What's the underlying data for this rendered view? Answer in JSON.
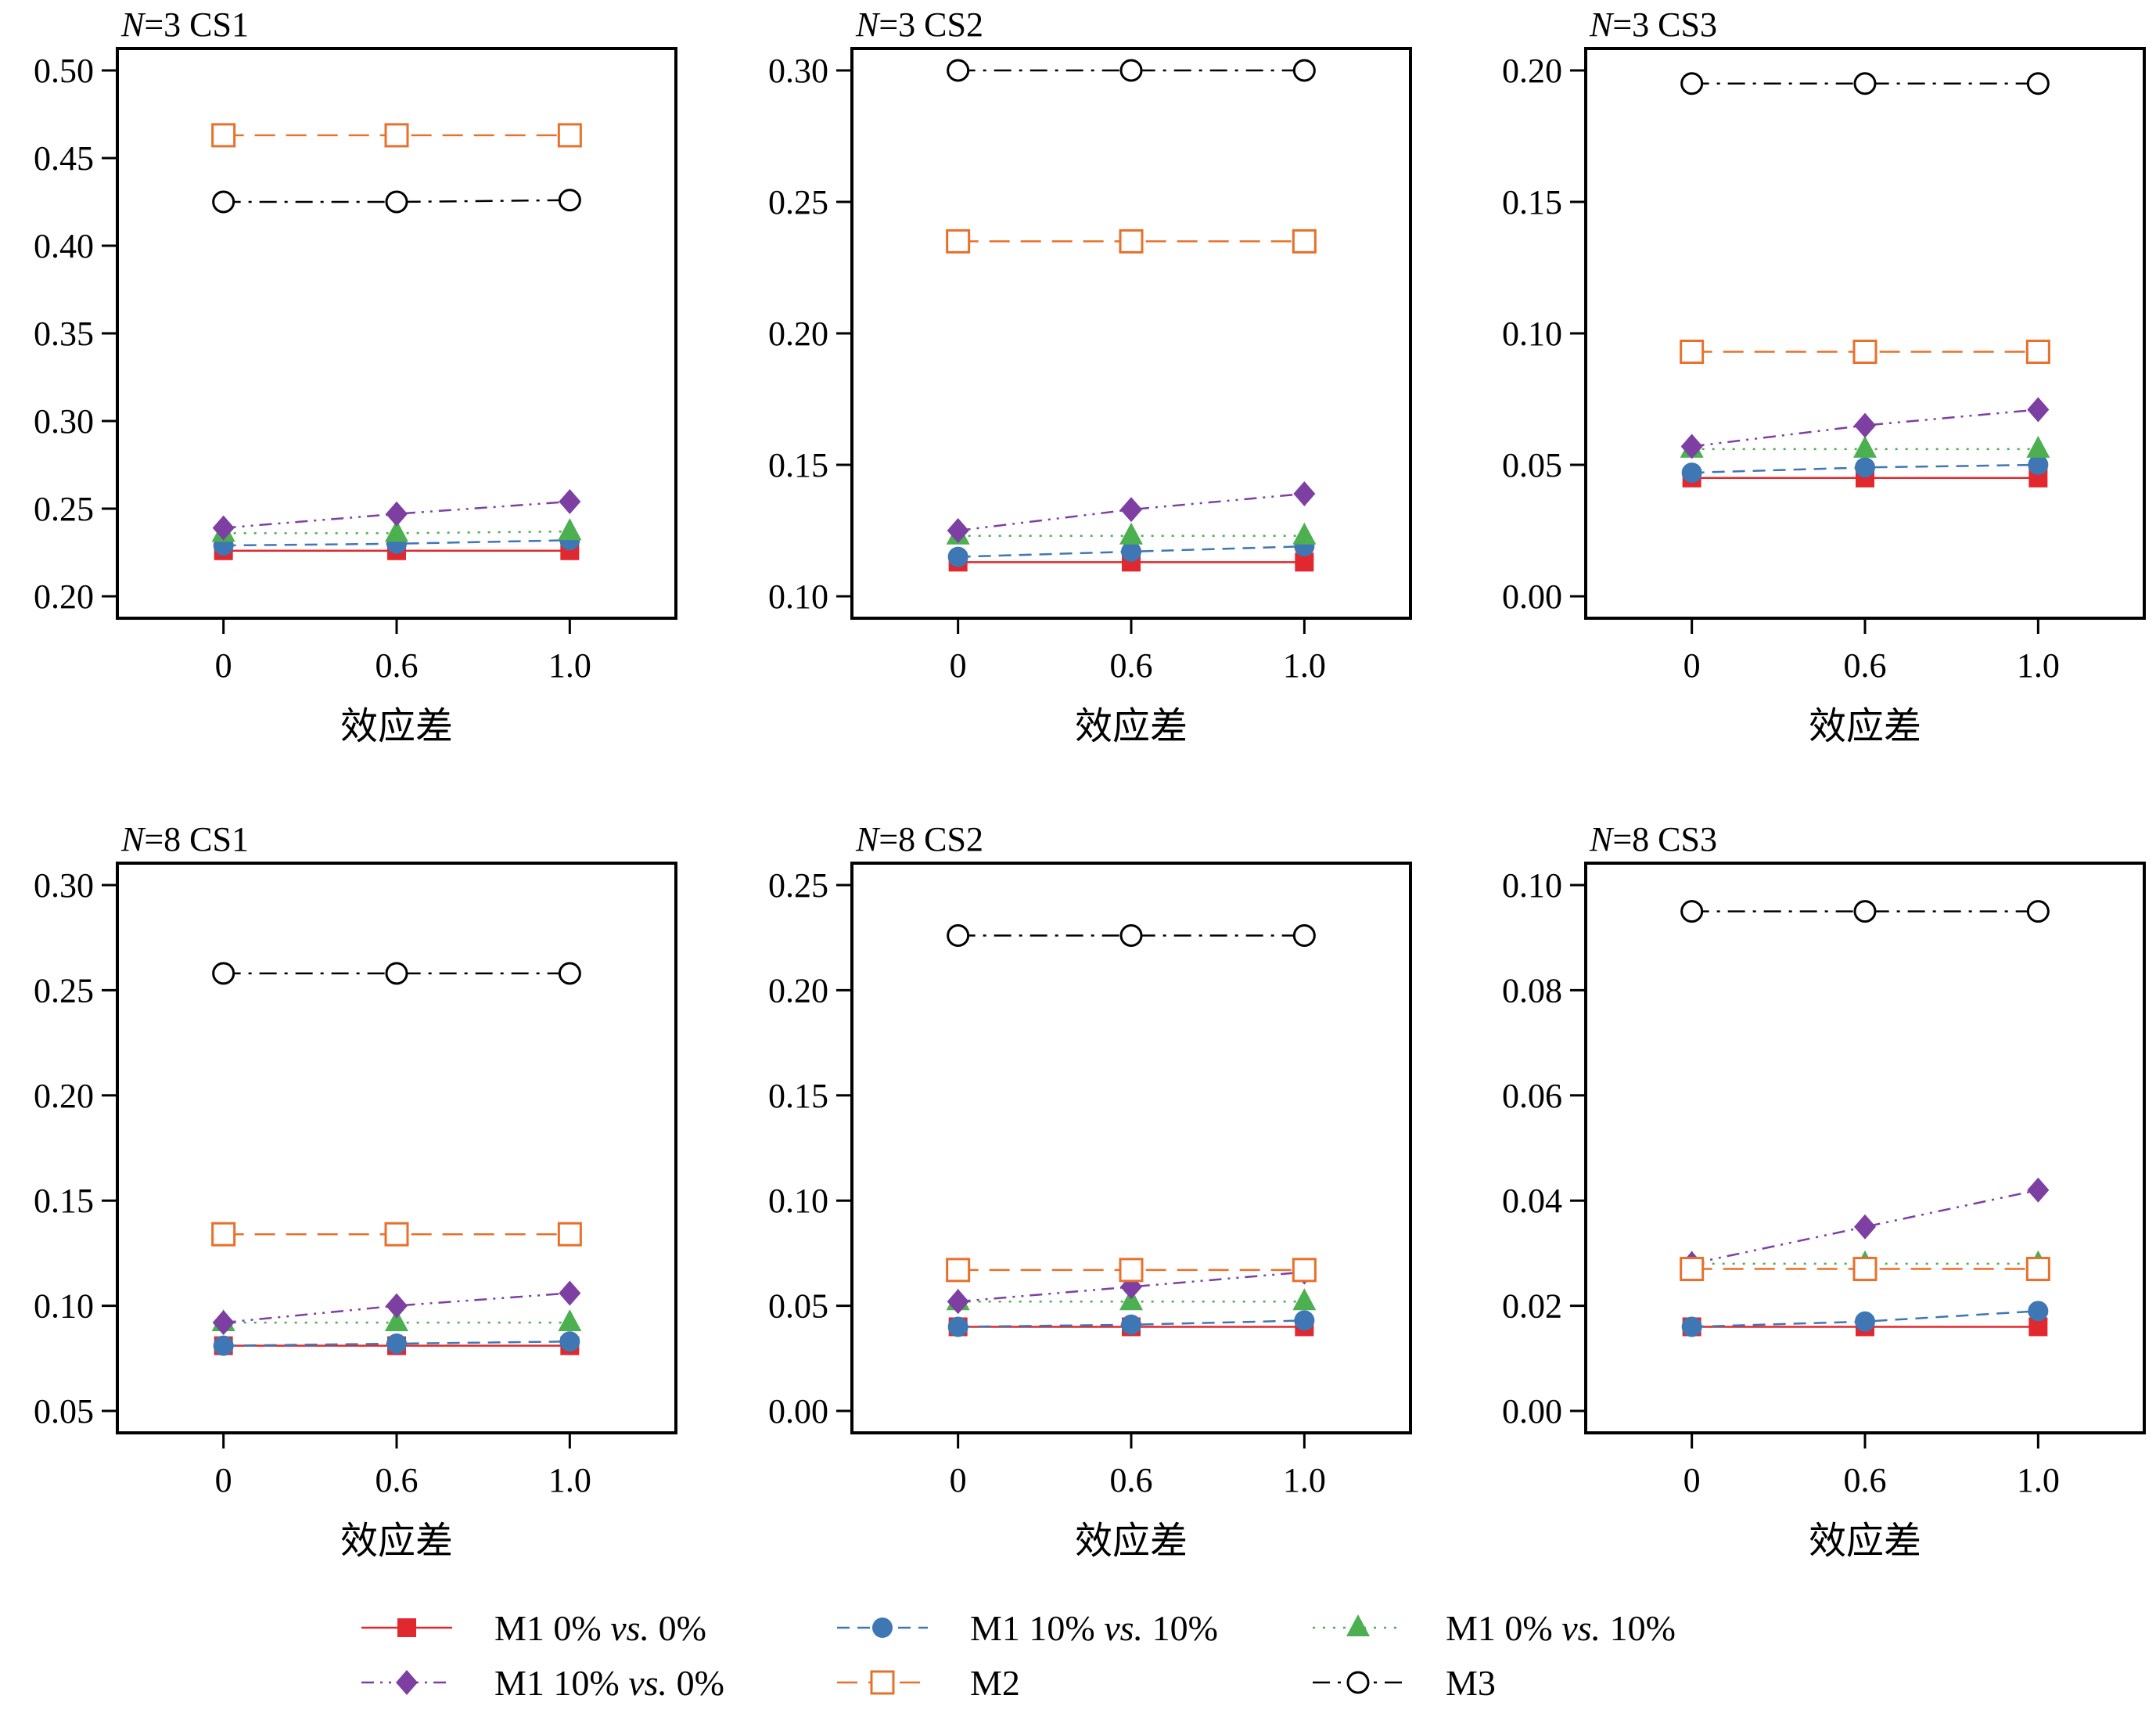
{
  "chart_data": {
    "type": "line",
    "layout": "grid 2x3",
    "series_styles": [
      {
        "name": "M1 0% vs. 0%",
        "color": "#e0282e",
        "marker": "square-filled",
        "line": "solid"
      },
      {
        "name": "M1 10% vs. 10%",
        "color": "#3f76b4",
        "marker": "circle-filled",
        "line": "dashed"
      },
      {
        "name": "M1 0% vs. 10%",
        "color": "#4caf50",
        "marker": "triangle-filled",
        "line": "dotted"
      },
      {
        "name": "M1 10% vs. 0%",
        "color": "#7e3fa3",
        "marker": "diamond-filled",
        "line": "dashdotdot"
      },
      {
        "name": "M2",
        "color": "#e8702a",
        "marker": "square-open",
        "line": "longdash"
      },
      {
        "name": "M3",
        "color": "#000000",
        "marker": "circle-open",
        "line": "dashdot"
      }
    ],
    "panels": [
      {
        "title_prefix": "N",
        "title_rest": "=3 CS1",
        "categories": [
          "0",
          "0.6",
          "1.0"
        ],
        "xlabel": "效应差",
        "ylim": [
          0.2,
          0.5
        ],
        "yticks": [
          "0.20",
          "0.25",
          "0.30",
          "0.35",
          "0.40",
          "0.45",
          "0.50"
        ],
        "series": [
          {
            "name": "M1 0% vs. 0%",
            "values": [
              0.226,
              0.226,
              0.226
            ]
          },
          {
            "name": "M1 10% vs. 10%",
            "values": [
              0.229,
              0.23,
              0.232
            ]
          },
          {
            "name": "M1 0% vs. 10%",
            "values": [
              0.236,
              0.236,
              0.237
            ]
          },
          {
            "name": "M1 10% vs. 0%",
            "values": [
              0.239,
              0.247,
              0.254
            ]
          },
          {
            "name": "M2",
            "values": [
              0.463,
              0.463,
              0.463
            ]
          },
          {
            "name": "M3",
            "values": [
              0.425,
              0.425,
              0.426
            ]
          }
        ]
      },
      {
        "title_prefix": "N",
        "title_rest": "=3 CS2",
        "categories": [
          "0",
          "0.6",
          "1.0"
        ],
        "xlabel": "效应差",
        "ylim": [
          0.1,
          0.3
        ],
        "yticks": [
          "0.10",
          "0.15",
          "0.20",
          "0.25",
          "0.30"
        ],
        "series": [
          {
            "name": "M1 0% vs. 0%",
            "values": [
              0.113,
              0.113,
              0.113
            ]
          },
          {
            "name": "M1 10% vs. 10%",
            "values": [
              0.115,
              0.117,
              0.119
            ]
          },
          {
            "name": "M1 0% vs. 10%",
            "values": [
              0.123,
              0.123,
              0.123
            ]
          },
          {
            "name": "M1 10% vs. 0%",
            "values": [
              0.125,
              0.133,
              0.139
            ]
          },
          {
            "name": "M2",
            "values": [
              0.235,
              0.235,
              0.235
            ]
          },
          {
            "name": "M3",
            "values": [
              0.3,
              0.3,
              0.3
            ]
          }
        ]
      },
      {
        "title_prefix": "N",
        "title_rest": "=3 CS3",
        "categories": [
          "0",
          "0.6",
          "1.0"
        ],
        "xlabel": "效应差",
        "ylim": [
          0.0,
          0.2
        ],
        "yticks": [
          "0.00",
          "0.05",
          "0.10",
          "0.15",
          "0.20"
        ],
        "series": [
          {
            "name": "M1 0% vs. 0%",
            "values": [
              0.045,
              0.045,
              0.045
            ]
          },
          {
            "name": "M1 10% vs. 10%",
            "values": [
              0.047,
              0.049,
              0.05
            ]
          },
          {
            "name": "M1 0% vs. 10%",
            "values": [
              0.056,
              0.056,
              0.056
            ]
          },
          {
            "name": "M1 10% vs. 0%",
            "values": [
              0.057,
              0.065,
              0.071
            ]
          },
          {
            "name": "M2",
            "values": [
              0.093,
              0.093,
              0.093
            ]
          },
          {
            "name": "M3",
            "values": [
              0.195,
              0.195,
              0.195
            ]
          }
        ]
      },
      {
        "title_prefix": "N",
        "title_rest": "=8 CS1",
        "categories": [
          "0",
          "0.6",
          "1.0"
        ],
        "xlabel": "效应差",
        "ylim": [
          0.05,
          0.3
        ],
        "yticks": [
          "0.05",
          "0.10",
          "0.15",
          "0.20",
          "0.25",
          "0.30"
        ],
        "series": [
          {
            "name": "M1 0% vs. 0%",
            "values": [
              0.081,
              0.081,
              0.081
            ]
          },
          {
            "name": "M1 10% vs. 10%",
            "values": [
              0.081,
              0.082,
              0.083
            ]
          },
          {
            "name": "M1 0% vs. 10%",
            "values": [
              0.092,
              0.092,
              0.092
            ]
          },
          {
            "name": "M1 10% vs. 0%",
            "values": [
              0.092,
              0.1,
              0.106
            ]
          },
          {
            "name": "M2",
            "values": [
              0.134,
              0.134,
              0.134
            ]
          },
          {
            "name": "M3",
            "values": [
              0.258,
              0.258,
              0.258
            ]
          }
        ]
      },
      {
        "title_prefix": "N",
        "title_rest": "=8 CS2",
        "categories": [
          "0",
          "0.6",
          "1.0"
        ],
        "xlabel": "效应差",
        "ylim": [
          0.0,
          0.25
        ],
        "yticks": [
          "0.00",
          "0.05",
          "0.10",
          "0.15",
          "0.20",
          "0.25"
        ],
        "series": [
          {
            "name": "M1 0% vs. 0%",
            "values": [
              0.04,
              0.04,
              0.04
            ]
          },
          {
            "name": "M1 10% vs. 10%",
            "values": [
              0.04,
              0.041,
              0.043
            ]
          },
          {
            "name": "M1 0% vs. 10%",
            "values": [
              0.052,
              0.052,
              0.052
            ]
          },
          {
            "name": "M1 10% vs. 0%",
            "values": [
              0.052,
              0.059,
              0.066
            ]
          },
          {
            "name": "M2",
            "values": [
              0.067,
              0.067,
              0.067
            ]
          },
          {
            "name": "M3",
            "values": [
              0.226,
              0.226,
              0.226
            ]
          }
        ]
      },
      {
        "title_prefix": "N",
        "title_rest": "=8 CS3",
        "categories": [
          "0",
          "0.6",
          "1.0"
        ],
        "xlabel": "效应差",
        "ylim": [
          0.0,
          0.1
        ],
        "yticks": [
          "0.00",
          "0.02",
          "0.04",
          "0.06",
          "0.08",
          "0.10"
        ],
        "series": [
          {
            "name": "M1 0% vs. 0%",
            "values": [
              0.016,
              0.016,
              0.016
            ]
          },
          {
            "name": "M1 10% vs. 10%",
            "values": [
              0.016,
              0.017,
              0.019
            ]
          },
          {
            "name": "M1 0% vs. 10%",
            "values": [
              0.028,
              0.028,
              0.028
            ]
          },
          {
            "name": "M1 10% vs. 0%",
            "values": [
              0.028,
              0.035,
              0.042
            ]
          },
          {
            "name": "M2",
            "values": [
              0.027,
              0.027,
              0.027
            ]
          },
          {
            "name": "M3",
            "values": [
              0.095,
              0.095,
              0.095
            ]
          }
        ]
      }
    ],
    "legend": {
      "placement": "bottom",
      "entries": [
        {
          "prefix": "M1 0% ",
          "italic": "vs.",
          "suffix": " 0%"
        },
        {
          "prefix": "M1 10% ",
          "italic": "vs.",
          "suffix": " 10%"
        },
        {
          "prefix": "M1 0% ",
          "italic": "vs.",
          "suffix": " 10%"
        },
        {
          "prefix": "M1 10% ",
          "italic": "vs.",
          "suffix": " 0%"
        },
        {
          "prefix": "M2",
          "italic": "",
          "suffix": ""
        },
        {
          "prefix": "M3",
          "italic": "",
          "suffix": ""
        }
      ]
    }
  }
}
